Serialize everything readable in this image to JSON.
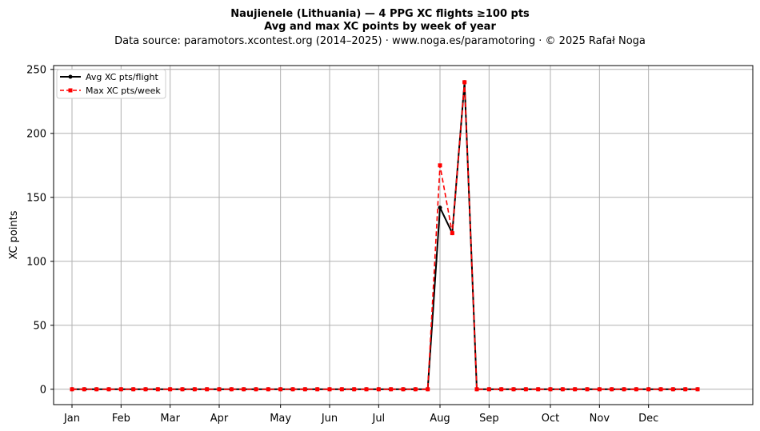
{
  "chart_data": {
    "type": "line",
    "title": "Naujienele (Lithuania)  —  4 PPG XC flights ≥100 pts",
    "subtitle": "Avg and max XC points by week of year",
    "source": "Data source: paramotors.xcontest.org (2014–2025)  ·  www.noga.es/paramotoring  ·  © 2025 Rafał Noga",
    "xlabel": "",
    "ylabel": "XC points",
    "xlim": [
      -1.5,
      55.5
    ],
    "ylim": [
      -12,
      253
    ],
    "grid": true,
    "legend_position": "top-left",
    "x_ticks": [
      {
        "week": 0,
        "label": "Jan"
      },
      {
        "week": 4,
        "label": "Feb"
      },
      {
        "week": 8,
        "label": "Mar"
      },
      {
        "week": 12,
        "label": "Apr"
      },
      {
        "week": 17,
        "label": "May"
      },
      {
        "week": 21,
        "label": "Jun"
      },
      {
        "week": 25,
        "label": "Jul"
      },
      {
        "week": 30,
        "label": "Aug"
      },
      {
        "week": 34,
        "label": "Sep"
      },
      {
        "week": 39,
        "label": "Oct"
      },
      {
        "week": 43,
        "label": "Nov"
      },
      {
        "week": 47,
        "label": "Dec"
      }
    ],
    "y_ticks": [
      0,
      50,
      100,
      150,
      200,
      250
    ],
    "x": [
      0,
      1,
      2,
      3,
      4,
      5,
      6,
      7,
      8,
      9,
      10,
      11,
      12,
      13,
      14,
      15,
      16,
      17,
      18,
      19,
      20,
      21,
      22,
      23,
      24,
      25,
      26,
      27,
      28,
      29,
      30,
      31,
      32,
      33,
      34,
      35,
      36,
      37,
      38,
      39,
      40,
      41,
      42,
      43,
      44,
      45,
      46,
      47,
      48,
      49,
      50,
      51
    ],
    "series": [
      {
        "name": "Avg XC pts/flight",
        "color": "#000000",
        "style": "solid",
        "marker": "circle",
        "values": [
          0,
          0,
          0,
          0,
          0,
          0,
          0,
          0,
          0,
          0,
          0,
          0,
          0,
          0,
          0,
          0,
          0,
          0,
          0,
          0,
          0,
          0,
          0,
          0,
          0,
          0,
          0,
          0,
          0,
          0,
          142,
          122,
          240,
          0,
          0,
          0,
          0,
          0,
          0,
          0,
          0,
          0,
          0,
          0,
          0,
          0,
          0,
          0,
          0,
          0,
          0,
          0
        ]
      },
      {
        "name": "Max XC pts/week",
        "color": "#ff0000",
        "style": "dashed",
        "marker": "square",
        "values": [
          0,
          0,
          0,
          0,
          0,
          0,
          0,
          0,
          0,
          0,
          0,
          0,
          0,
          0,
          0,
          0,
          0,
          0,
          0,
          0,
          0,
          0,
          0,
          0,
          0,
          0,
          0,
          0,
          0,
          0,
          175,
          122,
          240,
          0,
          0,
          0,
          0,
          0,
          0,
          0,
          0,
          0,
          0,
          0,
          0,
          0,
          0,
          0,
          0,
          0,
          0,
          0
        ]
      }
    ]
  }
}
